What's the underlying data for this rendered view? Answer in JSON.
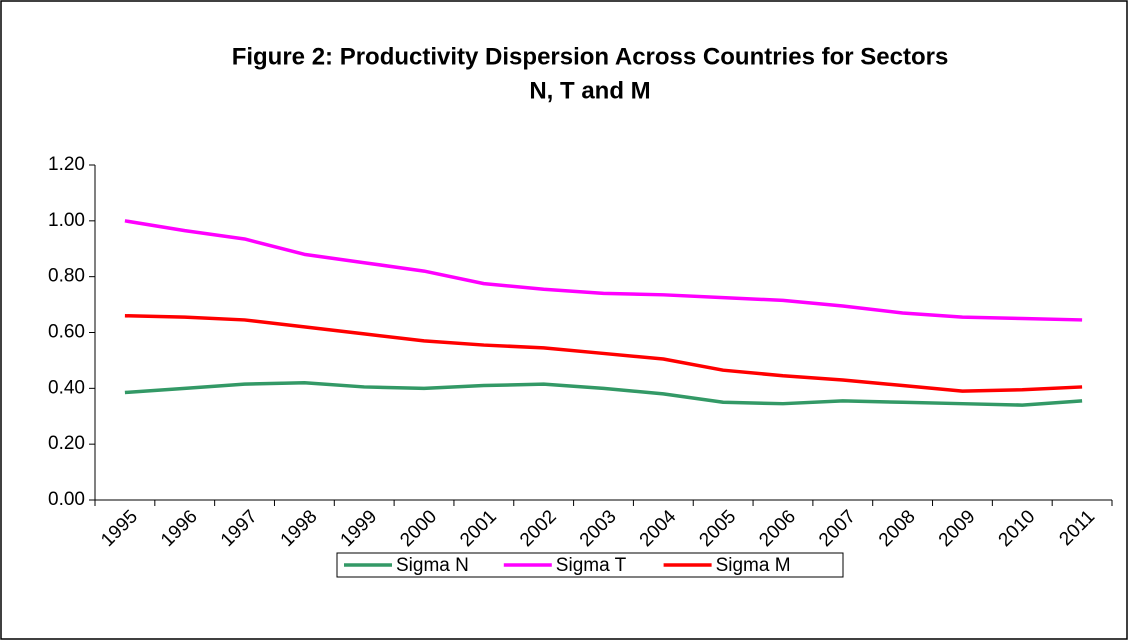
{
  "chart_data": {
    "type": "line",
    "title": [
      "Figure 2: Productivity Dispersion Across Countries for Sectors",
      "N, T and M"
    ],
    "categories": [
      "1995",
      "1996",
      "1997",
      "1998",
      "1999",
      "2000",
      "2001",
      "2002",
      "2003",
      "2004",
      "2005",
      "2006",
      "2007",
      "2008",
      "2009",
      "2010",
      "2011"
    ],
    "series": [
      {
        "name": "Sigma N",
        "color": "#339966",
        "values": [
          0.385,
          0.4,
          0.415,
          0.42,
          0.405,
          0.4,
          0.41,
          0.415,
          0.4,
          0.38,
          0.35,
          0.345,
          0.355,
          0.35,
          0.345,
          0.34,
          0.355
        ]
      },
      {
        "name": "Sigma T",
        "color": "#ff00ff",
        "values": [
          1.0,
          0.965,
          0.935,
          0.88,
          0.85,
          0.82,
          0.775,
          0.755,
          0.74,
          0.735,
          0.725,
          0.715,
          0.695,
          0.67,
          0.655,
          0.65,
          0.645
        ]
      },
      {
        "name": "Sigma M",
        "color": "#ff0000",
        "values": [
          0.66,
          0.655,
          0.645,
          0.62,
          0.595,
          0.57,
          0.555,
          0.545,
          0.525,
          0.505,
          0.465,
          0.445,
          0.43,
          0.41,
          0.39,
          0.395,
          0.405
        ]
      }
    ],
    "ylim": [
      0,
      1.2
    ],
    "yticks": [
      {
        "value": 0,
        "label": "0.00"
      },
      {
        "value": 0.2,
        "label": "0.20"
      },
      {
        "value": 0.4,
        "label": "0.40"
      },
      {
        "value": 0.6,
        "label": "0.60"
      },
      {
        "value": 0.8,
        "label": "0.80"
      },
      {
        "value": 1.0,
        "label": "1.00"
      },
      {
        "value": 1.2,
        "label": "1.20"
      }
    ],
    "grid": false,
    "legend": "bottom"
  }
}
